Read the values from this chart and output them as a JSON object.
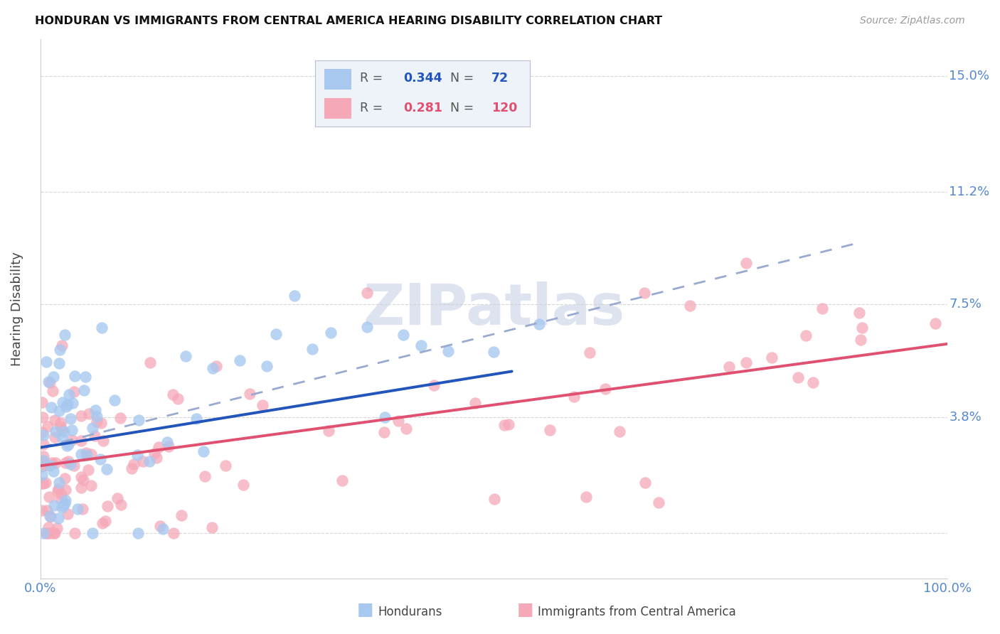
{
  "title": "HONDURAN VS IMMIGRANTS FROM CENTRAL AMERICA HEARING DISABILITY CORRELATION CHART",
  "source": "Source: ZipAtlas.com",
  "ylabel": "Hearing Disability",
  "yticks": [
    0.0,
    0.038,
    0.075,
    0.112,
    0.15
  ],
  "ytick_labels": [
    "",
    "3.8%",
    "7.5%",
    "11.2%",
    "15.0%"
  ],
  "xmin": 0.0,
  "xmax": 1.0,
  "ymin": -0.015,
  "ymax": 0.162,
  "blue_R": 0.344,
  "blue_N": 72,
  "pink_R": 0.281,
  "pink_N": 120,
  "blue_color": "#a8c8f0",
  "pink_color": "#f5a8b8",
  "blue_line_color": "#2255bb",
  "pink_line_color": "#e05070",
  "dash_line_color": "#99aad0",
  "axis_color": "#5588cc",
  "title_color": "#111111",
  "source_color": "#999999",
  "watermark_color": "#dde4f0",
  "legend_box_color": "#eef3fa",
  "grid_color": "#cccccc",
  "background_color": "#ffffff",
  "blue_line_x0": 0.0,
  "blue_line_x1": 0.52,
  "blue_line_y0": 0.028,
  "blue_line_y1": 0.053,
  "dash_line_x0": 0.0,
  "dash_line_x1": 0.9,
  "dash_line_y0": 0.028,
  "dash_line_y1": 0.095,
  "pink_line_x0": 0.0,
  "pink_line_x1": 1.0,
  "pink_line_y0": 0.022,
  "pink_line_y1": 0.062
}
